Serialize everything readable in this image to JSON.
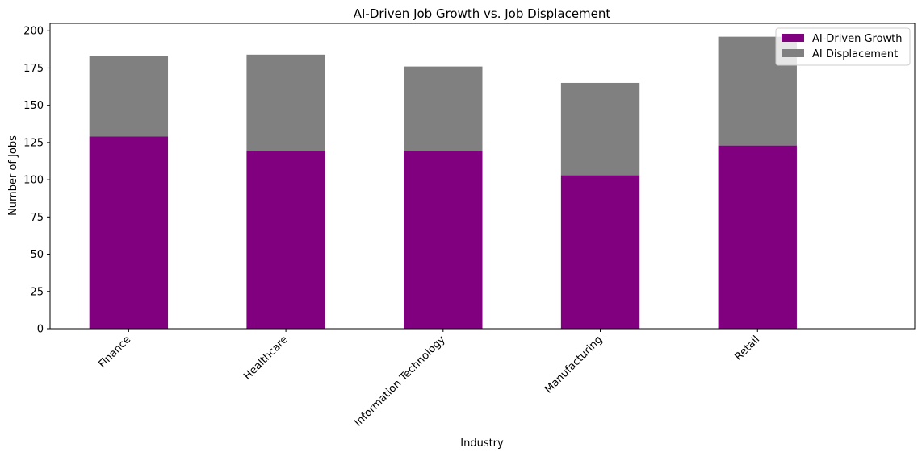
{
  "chart_data": {
    "type": "bar",
    "stacked": true,
    "title": "AI-Driven Job Growth vs. Job Displacement",
    "xlabel": "Industry",
    "ylabel": "Number of Jobs",
    "categories": [
      "Finance",
      "Healthcare",
      "Information Technology",
      "Manufacturing",
      "Retail"
    ],
    "series": [
      {
        "name": "AI-Driven Growth",
        "color": "#800080",
        "values": [
          129,
          119,
          119,
          103,
          123
        ]
      },
      {
        "name": "AI Displacement",
        "color": "#808080",
        "values": [
          54,
          65,
          57,
          62,
          73
        ]
      }
    ],
    "ylim": [
      0,
      205
    ],
    "yticks": [
      0,
      25,
      50,
      75,
      100,
      125,
      150,
      175,
      200
    ],
    "grid": false,
    "legend_position": "top-right"
  }
}
